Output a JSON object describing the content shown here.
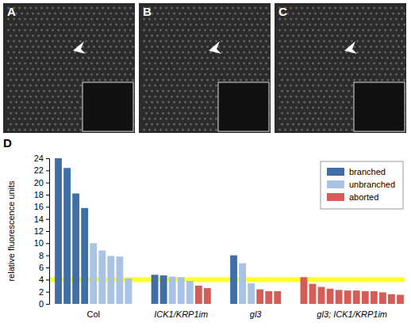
{
  "image_panels": [
    {
      "label": "A"
    },
    {
      "label": "B"
    },
    {
      "label": "C"
    }
  ],
  "chart_data": {
    "type": "bar",
    "title": "D",
    "y_label": "relative fluorescence units",
    "categories": [
      "Col",
      "ICK1/KRP1im",
      "gl3",
      "gl3; ICK1/KRP1im"
    ],
    "series": [
      {
        "name": "branched",
        "color": "#3f6fa6",
        "values": [
          [
            24,
            22.4,
            18.2,
            15.8
          ],
          [
            4.8,
            4.7
          ],
          [
            8.0
          ],
          []
        ]
      },
      {
        "name": "unbranched",
        "color": "#a8c3e3",
        "values": [
          [
            10,
            8.8,
            7.9,
            7.8,
            4.2
          ],
          [
            4.5,
            4.4,
            3.8
          ],
          [
            6.7,
            3.4
          ],
          []
        ]
      },
      {
        "name": "aborted",
        "color": "#d65c58",
        "values": [
          [],
          [
            3.0,
            2.6
          ],
          [
            2.4,
            2.1,
            2.1
          ],
          [
            4.4,
            3.3,
            2.8,
            2.5,
            2.3,
            2.2,
            2.2,
            2.1,
            2.1,
            1.9,
            1.6,
            1.5
          ]
        ]
      }
    ],
    "highlight_band": [
      3.6,
      4.4
    ],
    "ylim": [
      0,
      24
    ],
    "yticks": [
      0,
      2,
      4,
      6,
      8,
      10,
      12,
      14,
      16,
      18,
      20,
      22,
      24
    ],
    "legend": "upper right",
    "grid": false
  }
}
